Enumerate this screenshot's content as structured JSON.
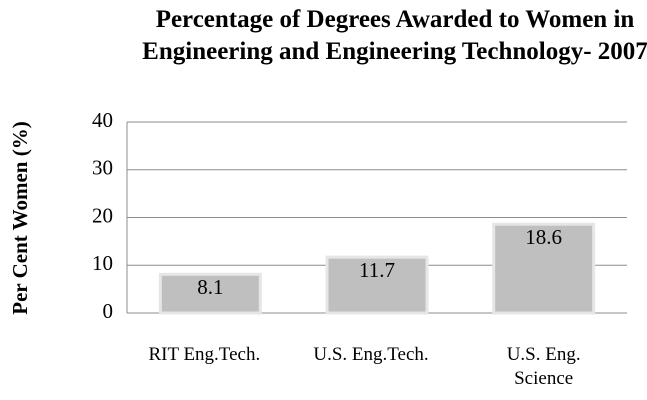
{
  "chart_data": {
    "type": "bar",
    "title": "Percentage of Degrees Awarded to Women in Engineering and Engineering Technology- 2007",
    "y_label": "Per Cent Women (%)",
    "categories": [
      "RIT Eng.Tech.",
      "U.S. Eng.Tech.",
      "U.S. Eng. Science"
    ],
    "values": [
      8.1,
      11.7,
      18.6
    ],
    "color": "#bfbfbf",
    "ylim": [
      0,
      40
    ],
    "yticks": [
      0,
      10,
      20,
      30,
      40
    ],
    "grid": true
  }
}
